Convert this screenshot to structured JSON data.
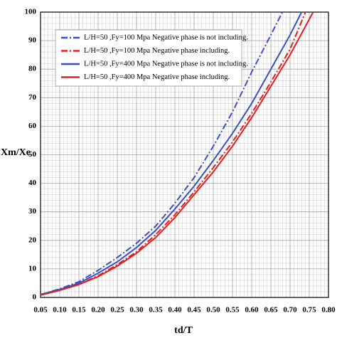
{
  "chart_data": {
    "type": "line",
    "x_label": "td/T",
    "y_label": "Xm/Xe",
    "xlim": [
      0.05,
      0.8
    ],
    "ylim": [
      0,
      100
    ],
    "xticks": [
      0.05,
      {
        "value": 0.1,
        "label": "0.10"
      },
      0.15,
      {
        "value": 0.2,
        "label": "0.20"
      },
      0.25,
      {
        "value": 0.3,
        "label": "0.30"
      },
      0.35,
      {
        "value": 0.4,
        "label": "0.40"
      },
      0.45,
      {
        "value": 0.5,
        "label": "0.50"
      },
      0.55,
      {
        "value": 0.6,
        "label": "0.60"
      },
      0.65,
      {
        "value": 0.7,
        "label": "0.70"
      },
      0.75,
      {
        "value": 0.8,
        "label": "0.80"
      }
    ],
    "yticks": [
      0,
      10,
      20,
      30,
      40,
      50,
      60,
      70,
      80,
      90,
      100
    ],
    "grid": true,
    "minor_divisions": 5,
    "legend": "upper left",
    "series": [
      {
        "name": "L/H=50 ,Fy=100 Mpa Negative phase is not  including.",
        "color": "#3a4fc4",
        "dash": "dashdot",
        "x": [
          0.05,
          0.1,
          0.15,
          0.2,
          0.25,
          0.3,
          0.35,
          0.4,
          0.45,
          0.5,
          0.55,
          0.6,
          0.65,
          0.68
        ],
        "values": [
          1,
          3,
          5.5,
          9.5,
          14,
          19,
          25,
          33,
          42,
          53,
          65,
          79,
          92,
          100
        ]
      },
      {
        "name": "L/H=50 ,Fy=100 Mpa Negative phase including.",
        "color": "#e02020",
        "dash": "dashdot",
        "x": [
          0.05,
          0.1,
          0.15,
          0.2,
          0.25,
          0.3,
          0.35,
          0.4,
          0.45,
          0.5,
          0.55,
          0.6,
          0.65,
          0.7,
          0.74
        ],
        "values": [
          1,
          2.6,
          4.6,
          7.6,
          11.5,
          16,
          22,
          29,
          37,
          45.5,
          54.5,
          64.5,
          75.5,
          87,
          100
        ]
      },
      {
        "name": "L/H=50 ,Fy=400 Mpa Negative phase is not including.",
        "color": "#3a4fc4",
        "dash": "solid",
        "x": [
          0.05,
          0.1,
          0.15,
          0.2,
          0.25,
          0.3,
          0.35,
          0.4,
          0.45,
          0.5,
          0.55,
          0.6,
          0.65,
          0.7,
          0.73
        ],
        "values": [
          1,
          2.8,
          5,
          8.5,
          12.5,
          17.5,
          23.5,
          31,
          39,
          48,
          57.5,
          68,
          80,
          92,
          100
        ]
      },
      {
        "name": "L/H=50 ,Fy=400 Mpa Negative phase including.",
        "color": "#e02020",
        "dash": "solid",
        "x": [
          0.05,
          0.1,
          0.15,
          0.2,
          0.25,
          0.3,
          0.35,
          0.4,
          0.45,
          0.5,
          0.55,
          0.6,
          0.65,
          0.7,
          0.76
        ],
        "values": [
          0.8,
          2.5,
          4.5,
          7.3,
          11,
          15.5,
          21,
          28,
          36,
          44,
          53,
          63,
          74,
          85,
          100
        ]
      }
    ]
  }
}
